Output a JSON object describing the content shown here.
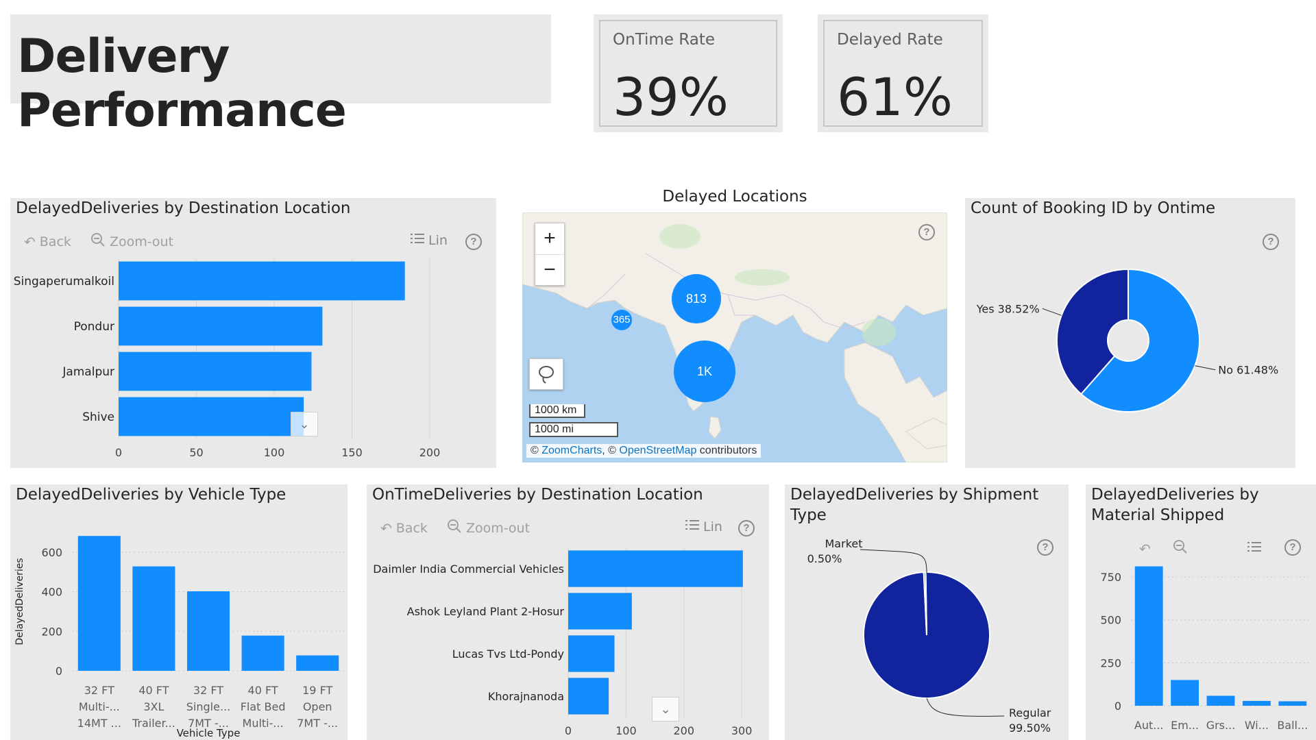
{
  "header": {
    "title": "Delivery Performance"
  },
  "kpis": [
    {
      "label": "OnTime Rate",
      "value": "39%"
    },
    {
      "label": "Delayed Rate",
      "value": "61%"
    }
  ],
  "toolbar": {
    "back": "Back",
    "zoom_out": "Zoom-out",
    "lin": "Lin"
  },
  "colors": {
    "bar": "#118dff",
    "dark": "#12239e",
    "panel": "#e9e9e9",
    "water": "#aed2ef",
    "land": "#f2efe9"
  },
  "map": {
    "title": "Delayed Locations",
    "zoom_in": "+",
    "zoom_out": "−",
    "scale_km": "1000 km",
    "scale_mi": "1000 mi",
    "attribution_prefix": "© ",
    "attribution_zoomcharts": "ZoomCharts",
    "attribution_mid": ", © ",
    "attribution_osm": "OpenStreetMap",
    "attribution_suffix": " contributors",
    "clusters": [
      {
        "label": "813",
        "value": 813
      },
      {
        "label": "365",
        "value": 365
      },
      {
        "label": "1K",
        "value": 1000
      }
    ]
  },
  "chart_data": [
    {
      "id": "delayed_by_destination",
      "type": "bar",
      "orientation": "horizontal",
      "title": "DelayedDeliveries by Destination Location",
      "categories": [
        "Singaperumalkoil",
        "Pondur",
        "Jamalpur",
        "Shive"
      ],
      "values": [
        184,
        131,
        124,
        119
      ],
      "xlim": [
        0,
        200
      ],
      "ticks": [
        0,
        50,
        100,
        150,
        200
      ],
      "grid": true
    },
    {
      "id": "count_booking_by_ontime",
      "type": "pie",
      "variant": "donut",
      "title": "Count of Booking ID by Ontime",
      "slices": [
        {
          "label": "No",
          "value": 61.48,
          "display": "No 61.48%",
          "color": "#118dff"
        },
        {
          "label": "Yes",
          "value": 38.52,
          "display": "Yes 38.52%",
          "color": "#12239e"
        }
      ]
    },
    {
      "id": "delayed_by_vehicle_type",
      "type": "bar",
      "orientation": "vertical",
      "title": "DelayedDeliveries by Vehicle Type",
      "xlabel": "Vehicle Type",
      "ylabel": "DelayedDeliveries",
      "categories": [
        [
          "32 FT",
          "Multi-...",
          "14MT ..."
        ],
        [
          "40 FT",
          "3XL",
          "Trailer..."
        ],
        [
          "32 FT",
          "Single...",
          "7MT -..."
        ],
        [
          "40 FT",
          "Flat Bed",
          "Multi-..."
        ],
        [
          "19 FT",
          "Open",
          "7MT -..."
        ]
      ],
      "values": [
        682,
        528,
        402,
        178,
        78
      ],
      "ylim": [
        0,
        700
      ],
      "ticks": [
        0,
        200,
        400,
        600
      ],
      "grid": true
    },
    {
      "id": "ontime_by_destination",
      "type": "bar",
      "orientation": "horizontal",
      "title": "OnTimeDeliveries by Destination Location",
      "categories": [
        "Daimler India Commercial Vehicles",
        "Ashok Leyland Plant 2-Hosur",
        "Lucas Tvs Ltd-Pondy",
        "Khorajnanoda"
      ],
      "values": [
        302,
        110,
        80,
        70
      ],
      "xlim": [
        0,
        320
      ],
      "ticks": [
        0,
        100,
        200,
        300
      ],
      "grid": true
    },
    {
      "id": "delayed_by_shipment_type",
      "type": "pie",
      "title": "DelayedDeliveries by Shipment Type",
      "slices": [
        {
          "label": "Regular",
          "value": 99.5,
          "display_name": "Regular",
          "display_pct": "99.50%",
          "color": "#12239e"
        },
        {
          "label": "Market",
          "value": 0.5,
          "display_name": "Market",
          "display_pct": "0.50%",
          "color": "#118dff"
        }
      ]
    },
    {
      "id": "delayed_by_material",
      "type": "bar",
      "orientation": "vertical",
      "title": "DelayedDeliveries by Material Shipped",
      "categories": [
        "Aut...",
        "Em...",
        "Grs...",
        "Wi...",
        "Ball..."
      ],
      "values": [
        812,
        150,
        58,
        28,
        26
      ],
      "ylim": [
        0,
        850
      ],
      "ticks": [
        0,
        250,
        500,
        750
      ],
      "grid": true
    }
  ]
}
